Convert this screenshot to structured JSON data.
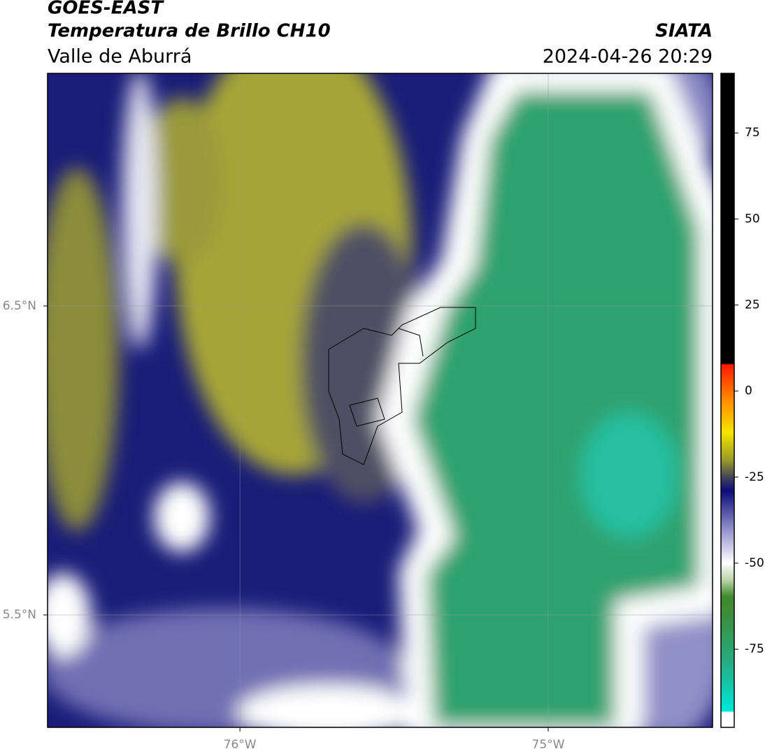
{
  "header": {
    "title": "GOES-EAST",
    "subtitle": "Temperatura de Brillo CH10",
    "region": "Valle de Aburrá",
    "source": "SIATA",
    "datetime": "2024-04-26 20:29"
  },
  "map": {
    "xlim": [
      -76.624,
      -74.467
    ],
    "ylim": [
      5.136,
      7.253
    ],
    "lat_ticks": [
      {
        "value": 6.5,
        "label": "6.5°N"
      },
      {
        "value": 5.5,
        "label": "5.5°N"
      }
    ],
    "lon_ticks": [
      {
        "value": -76,
        "label": "76°W"
      },
      {
        "value": -75,
        "label": "75°W"
      }
    ]
  },
  "colorbar": {
    "range": [
      -97.7,
      92.3
    ],
    "ticks": [
      75,
      50,
      25,
      0,
      -25,
      -50,
      -75
    ]
  }
}
